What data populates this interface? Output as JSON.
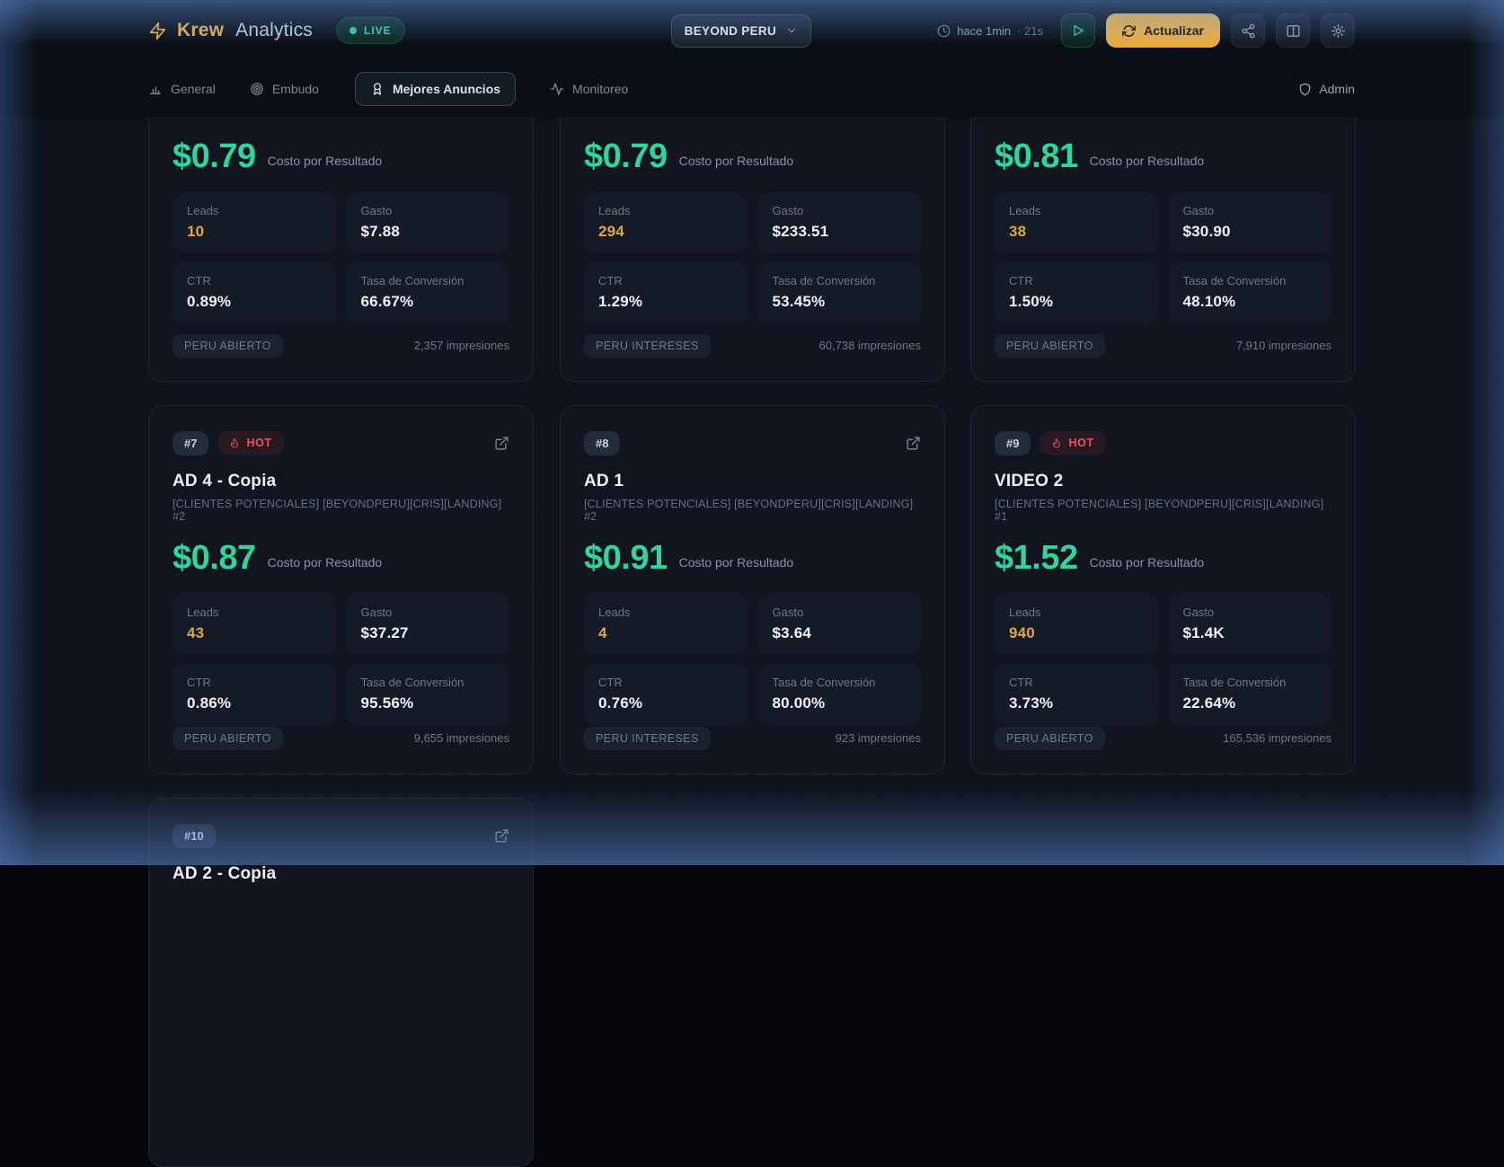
{
  "header": {
    "brand_name": "Krew",
    "brand_suffix": "Analytics",
    "live_label": "LIVE",
    "account_selector": "BEYOND PERU",
    "last_update": "hace 1min",
    "refresh_interval": "· 21s",
    "refresh_label": "Actualizar"
  },
  "nav": {
    "tabs": [
      {
        "label": "General"
      },
      {
        "label": "Embudo"
      },
      {
        "label": "Mejores Anuncios"
      },
      {
        "label": "Monitoreo"
      }
    ],
    "admin_label": "Admin"
  },
  "labels": {
    "hot": "HOT",
    "cost_per_result": "Costo por Resultado",
    "leads": "Leads",
    "spend": "Gasto",
    "ctr": "CTR",
    "conversion": "Tasa de Conversión"
  },
  "cards": [
    {
      "partial": "top",
      "cost": "$0.79",
      "leads": "10",
      "spend": "$7.88",
      "ctr": "0.89%",
      "conversion": "66.67%",
      "tag": "PERU ABIERTO",
      "impressions": "2,357 impresiones"
    },
    {
      "partial": "top",
      "cost": "$0.79",
      "leads": "294",
      "spend": "$233.51",
      "ctr": "1.29%",
      "conversion": "53.45%",
      "tag": "PERU INTERESES",
      "impressions": "60,738 impresiones"
    },
    {
      "partial": "top",
      "cost": "$0.81",
      "leads": "38",
      "spend": "$30.90",
      "ctr": "1.50%",
      "conversion": "48.10%",
      "tag": "PERU ABIERTO",
      "impressions": "7,910 impresiones"
    },
    {
      "rank": "#7",
      "hot": true,
      "external": true,
      "title": "AD 4 - Copia",
      "subtitle": "[CLIENTES POTENCIALES] [BEYONDPERU][CRIS][LANDING] #2",
      "cost": "$0.87",
      "leads": "43",
      "spend": "$37.27",
      "ctr": "0.86%",
      "conversion": "95.56%",
      "tag": "PERU ABIERTO",
      "impressions": "9,655 impresiones"
    },
    {
      "rank": "#8",
      "hot": false,
      "external": true,
      "title": "AD 1",
      "subtitle": "[CLIENTES POTENCIALES] [BEYONDPERU][CRIS][LANDING] #2",
      "cost": "$0.91",
      "leads": "4",
      "spend": "$3.64",
      "ctr": "0.76%",
      "conversion": "80.00%",
      "tag": "PERU INTERESES",
      "impressions": "923 impresiones"
    },
    {
      "rank": "#9",
      "hot": true,
      "external": false,
      "title": "VIDEO 2",
      "subtitle": "[CLIENTES POTENCIALES] [BEYONDPERU][CRIS][LANDING] #1",
      "cost": "$1.52",
      "leads": "940",
      "spend": "$1.4K",
      "ctr": "3.73%",
      "conversion": "22.64%",
      "tag": "PERU ABIERTO",
      "impressions": "165,536 impresiones"
    },
    {
      "rank": "#10",
      "hot": false,
      "external": true,
      "partial": "bottom",
      "title": "AD 2 - Copia"
    }
  ]
}
